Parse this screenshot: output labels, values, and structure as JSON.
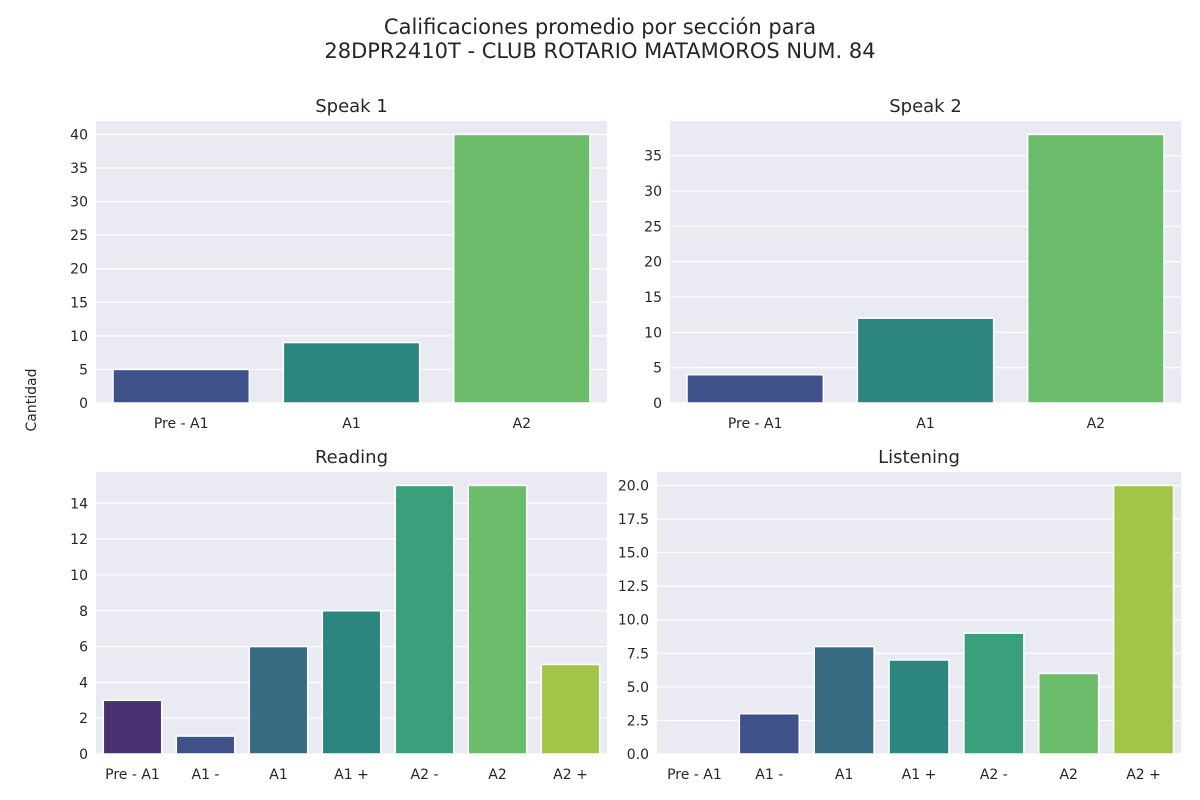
{
  "figure": {
    "suptitle_line1": "Calificaciones promedio por sección para",
    "suptitle_line2": "28DPR2410T - CLUB ROTARIO MATAMOROS NUM. 84",
    "ylabel": "Cantidad",
    "background_color": "#eaeaf2",
    "grid_color": "#ffffff"
  },
  "chart_data": [
    {
      "type": "bar",
      "title": "Speak 1",
      "categories": [
        "Pre - A1",
        "A1",
        "A2"
      ],
      "values": [
        5,
        9,
        40
      ],
      "ylim": [
        0,
        42
      ],
      "yticks": [
        0,
        5,
        10,
        15,
        20,
        25,
        30,
        35,
        40
      ],
      "grid": true,
      "colors": [
        "#3e5188",
        "#2d8580",
        "#6bbd6c"
      ]
    },
    {
      "type": "bar",
      "title": "Speak 2",
      "categories": [
        "Pre - A1",
        "A1",
        "A2"
      ],
      "values": [
        4,
        12,
        38
      ],
      "ylim": [
        0,
        39.9
      ],
      "yticks": [
        0,
        5,
        10,
        15,
        20,
        25,
        30,
        35
      ],
      "grid": true,
      "colors": [
        "#3e5188",
        "#2d8580",
        "#6bbd6c"
      ]
    },
    {
      "type": "bar",
      "title": "Reading",
      "categories": [
        "Pre - A1",
        "A1 -",
        "A1",
        "A1 +",
        "A2 -",
        "A2",
        "A2 +"
      ],
      "values": [
        3,
        1,
        6,
        8,
        15,
        15,
        5
      ],
      "ylim": [
        0,
        15.75
      ],
      "yticks": [
        0,
        2,
        4,
        6,
        8,
        10,
        12,
        14
      ],
      "grid": true,
      "colors": [
        "#4a3171",
        "#3e5188",
        "#366b82",
        "#2d8580",
        "#3a9f7b",
        "#6bbd6c",
        "#a0c548"
      ]
    },
    {
      "type": "bar",
      "title": "Listening",
      "categories": [
        "Pre - A1",
        "A1 -",
        "A1",
        "A1 +",
        "A2 -",
        "A2",
        "A2 +"
      ],
      "values": [
        0,
        3,
        8,
        7,
        9,
        6,
        20
      ],
      "ylim": [
        0,
        21
      ],
      "yticks": [
        "0.0",
        "2.5",
        "5.0",
        "7.5",
        "10.0",
        "12.5",
        "15.0",
        "17.5",
        "20.0"
      ],
      "grid": true,
      "colors": [
        "#4a3171",
        "#3e5188",
        "#366b82",
        "#2d8580",
        "#3a9f7b",
        "#6bbd6c",
        "#a0c548"
      ]
    }
  ]
}
